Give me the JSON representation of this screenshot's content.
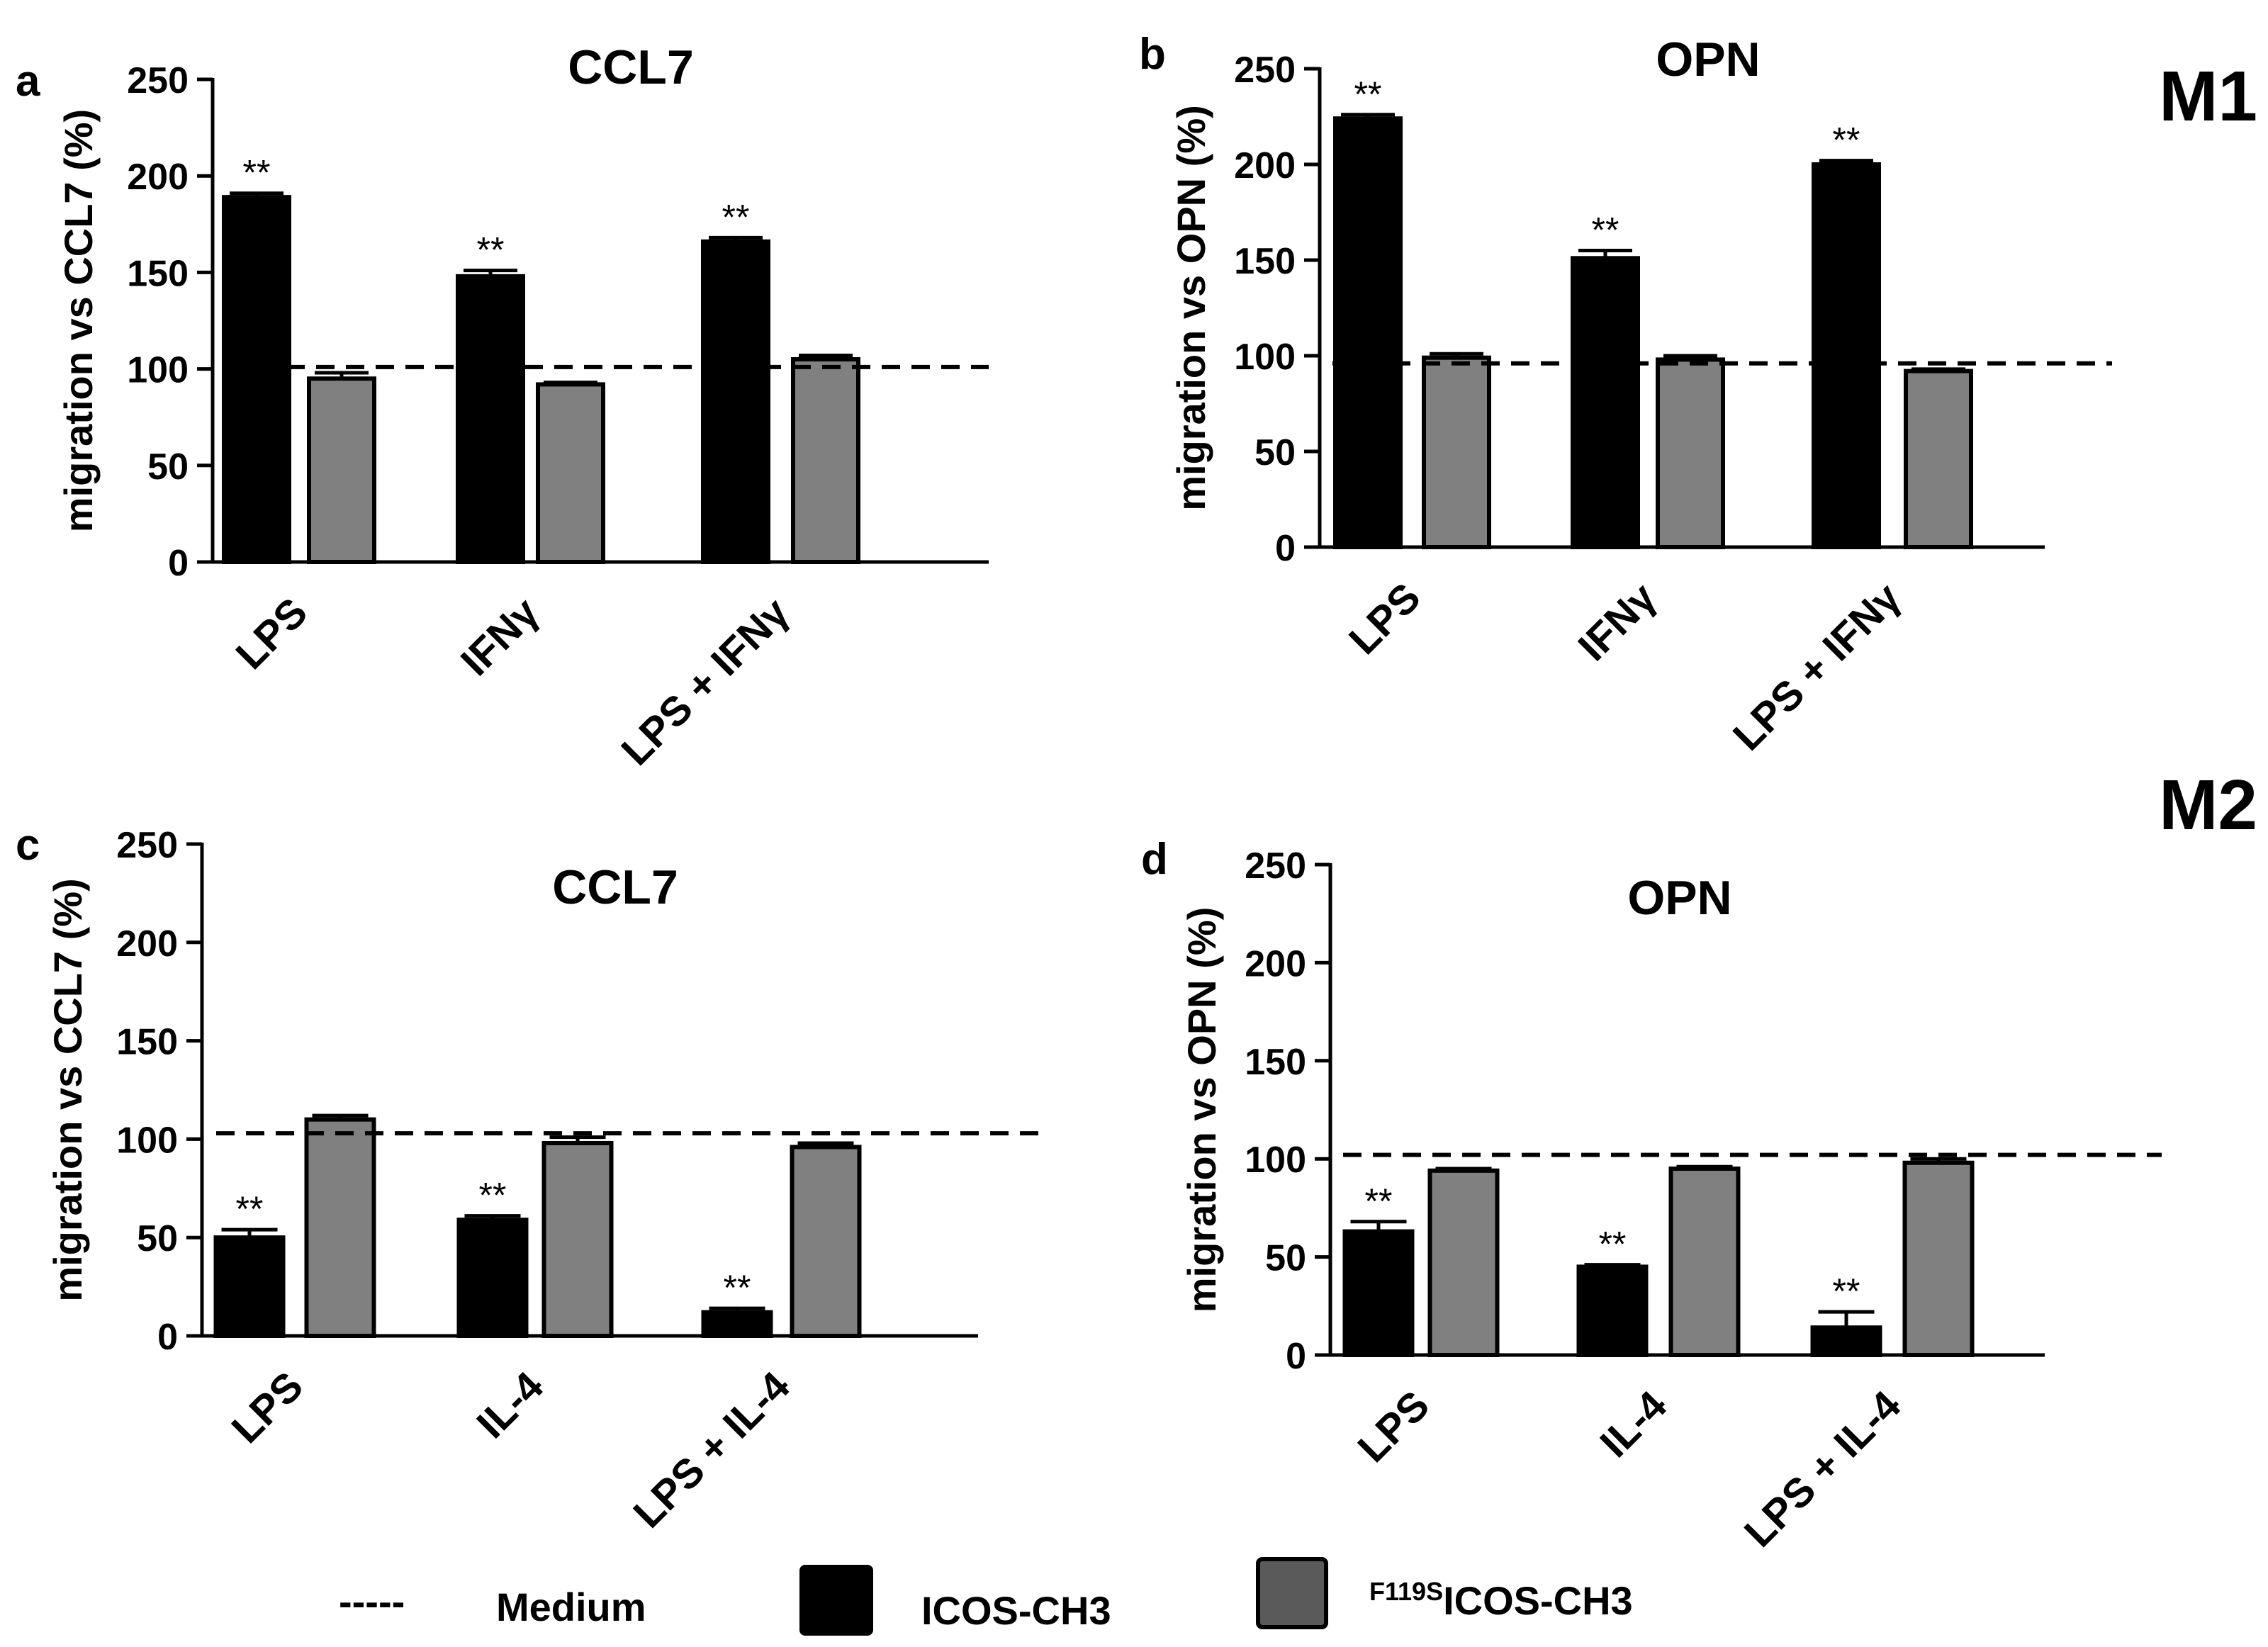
{
  "group_labels": {
    "m1": "M1",
    "m2": "M2"
  },
  "legend": {
    "medium_label": "Medium",
    "icos_label": "ICOS-CH3",
    "mutant_superscript": "F119S",
    "mutant_label": "ICOS-CH3",
    "medium_dash": "-----",
    "icos_color": "#000000",
    "mutant_color": "#808080"
  },
  "chart_data": [
    {
      "panel": "a",
      "type": "bar",
      "title": "CCL7",
      "xlabel": "",
      "ylabel": "migration vs CCL7 (%)",
      "ylim": [
        0,
        250
      ],
      "yticks": [
        0,
        50,
        100,
        150,
        200,
        250
      ],
      "categories": [
        "LPS",
        "IFNγ",
        "LPS + IFNγ"
      ],
      "series": [
        {
          "name": "ICOS-CH3",
          "color": "#000000",
          "values": [
            189,
            148,
            166
          ],
          "errors": [
            2,
            3,
            2
          ]
        },
        {
          "name": "F119SICOS-CH3",
          "color": "#808080",
          "values": [
            95,
            92,
            105
          ],
          "errors": [
            3,
            1,
            2
          ]
        }
      ],
      "medium_line": 101,
      "annotations": [
        "**",
        "**",
        "**"
      ]
    },
    {
      "panel": "b",
      "type": "bar",
      "title": "OPN",
      "xlabel": "",
      "ylabel": "migration vs OPN (%)",
      "ylim": [
        0,
        250
      ],
      "yticks": [
        0,
        50,
        100,
        150,
        200,
        250
      ],
      "categories": [
        "LPS",
        "IFNγ",
        "LPS + IFNγ"
      ],
      "series": [
        {
          "name": "ICOS-CH3",
          "color": "#000000",
          "values": [
            224,
            151,
            200
          ],
          "errors": [
            2,
            4,
            2
          ]
        },
        {
          "name": "F119SICOS-CH3",
          "color": "#808080",
          "values": [
            99,
            98,
            92
          ],
          "errors": [
            2,
            2,
            1
          ]
        }
      ],
      "medium_line": 96,
      "annotations": [
        "**",
        "**",
        "**"
      ]
    },
    {
      "panel": "c",
      "type": "bar",
      "title": "CCL7",
      "xlabel": "",
      "ylabel": "migration vs CCL7 (%)",
      "ylim": [
        0,
        250
      ],
      "yticks": [
        0,
        50,
        100,
        150,
        200,
        250
      ],
      "categories": [
        "LPS",
        "IL-4",
        "LPS + IL-4"
      ],
      "series": [
        {
          "name": "ICOS-CH3",
          "color": "#000000",
          "values": [
            50,
            59,
            12
          ],
          "errors": [
            4,
            2,
            2
          ]
        },
        {
          "name": "F119SICOS-CH3",
          "color": "#808080",
          "values": [
            110,
            98,
            96
          ],
          "errors": [
            2,
            3,
            2
          ]
        }
      ],
      "medium_line": 103,
      "annotations": [
        "**",
        "**",
        "**"
      ]
    },
    {
      "panel": "d",
      "type": "bar",
      "title": "OPN",
      "xlabel": "",
      "ylabel": "migration vs OPN (%)",
      "ylim": [
        0,
        250
      ],
      "yticks": [
        0,
        50,
        100,
        150,
        200,
        250
      ],
      "categories": [
        "LPS",
        "IL-4",
        "LPS + IL-4"
      ],
      "series": [
        {
          "name": "ICOS-CH3",
          "color": "#000000",
          "values": [
            63,
            45,
            14
          ],
          "errors": [
            5,
            1,
            8
          ]
        },
        {
          "name": "F119SICOS-CH3",
          "color": "#808080",
          "values": [
            94,
            95,
            98
          ],
          "errors": [
            1,
            1,
            2
          ]
        }
      ],
      "medium_line": 102,
      "annotations": [
        "**",
        "**",
        "**"
      ]
    }
  ]
}
